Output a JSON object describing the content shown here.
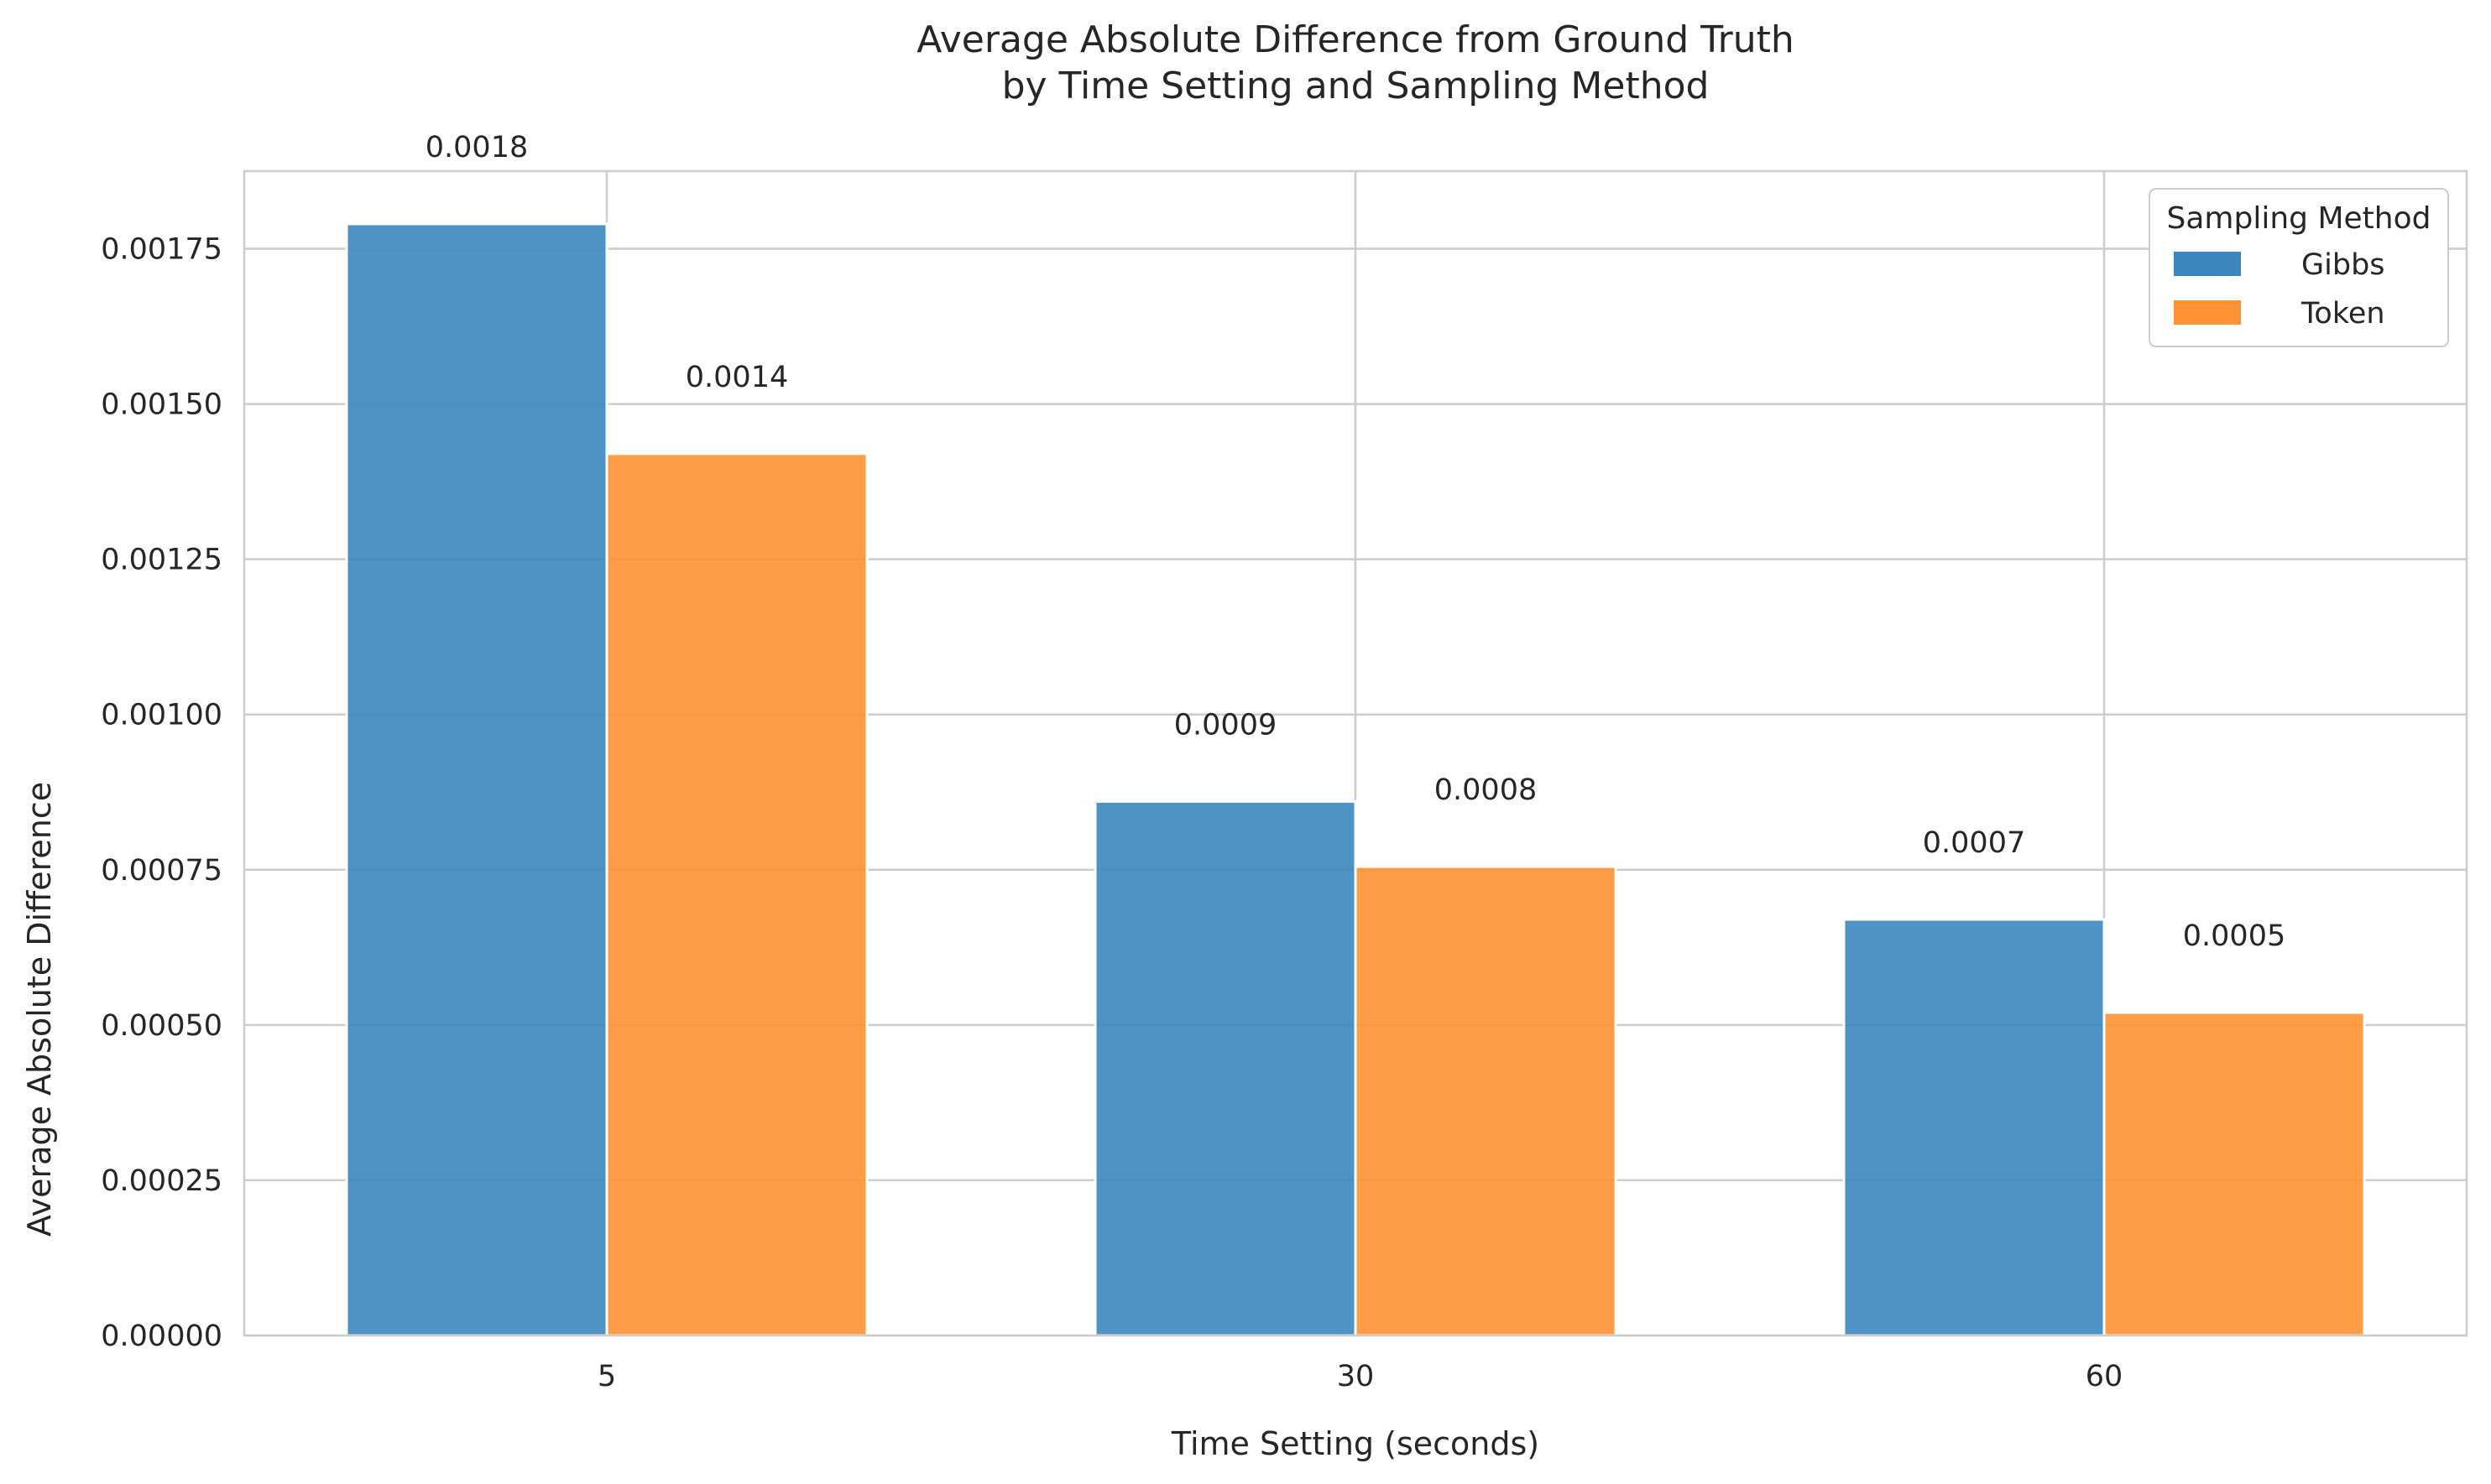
{
  "chart_data": {
    "type": "bar",
    "title_lines": [
      "Average Absolute Difference from Ground Truth",
      "by Time Setting and Sampling Method"
    ],
    "xlabel": "Time Setting (seconds)",
    "ylabel": "Average Absolute Difference",
    "categories": [
      "5",
      "30",
      "60"
    ],
    "series": [
      {
        "name": "Gibbs",
        "color": "#3a87c0",
        "values": [
          0.00179,
          0.00086,
          0.00067
        ],
        "labels": [
          "0.0018",
          "0.0009",
          "0.0007"
        ]
      },
      {
        "name": "Token",
        "color": "#ff9232",
        "values": [
          0.00142,
          0.000755,
          0.00052
        ],
        "labels": [
          "0.0014",
          "0.0008",
          "0.0005"
        ]
      }
    ],
    "ylim": [
      0,
      0.001875
    ],
    "yticks": [
      "0.00000",
      "0.00025",
      "0.00050",
      "0.00075",
      "0.00100",
      "0.00125",
      "0.00150",
      "0.00175"
    ],
    "grid": true,
    "legend": {
      "title": "Sampling Method",
      "placement": "top-right"
    }
  }
}
